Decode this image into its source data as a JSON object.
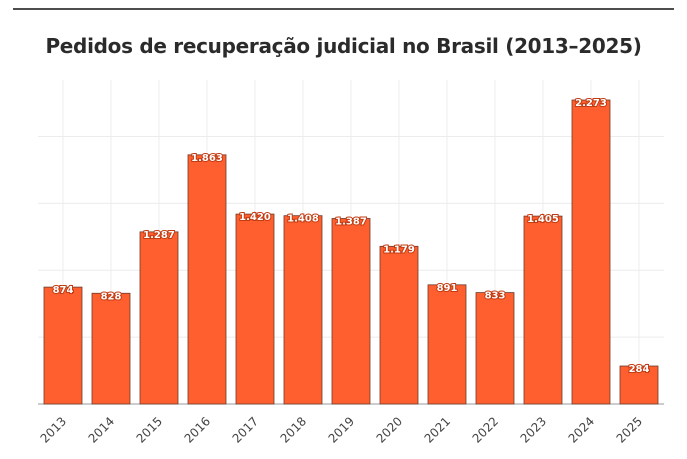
{
  "chart_data": {
    "type": "bar",
    "title": "Pedidos de recuperação judicial no Brasil (2013–2025)",
    "xlabel": "",
    "ylabel": "",
    "categories": [
      "2013",
      "2014",
      "2015",
      "2016",
      "2017",
      "2018",
      "2019",
      "2020",
      "2021",
      "2022",
      "2023",
      "2024",
      "2025"
    ],
    "values": [
      874,
      828,
      1287,
      1863,
      1420,
      1408,
      1387,
      1179,
      891,
      833,
      1405,
      2273,
      284
    ],
    "value_labels": [
      "874",
      "828",
      "1.287",
      "1.863",
      "1.420",
      "1.408",
      "1.387",
      "1.179",
      "891",
      "833",
      "1.405",
      "2.273",
      "284"
    ],
    "ylim": [
      0,
      2400
    ],
    "grid": true,
    "legend": "none",
    "colors": {
      "bar": "#ff5f2e",
      "bar_edge": "#6b3a2a",
      "grid": "#ececec"
    }
  }
}
